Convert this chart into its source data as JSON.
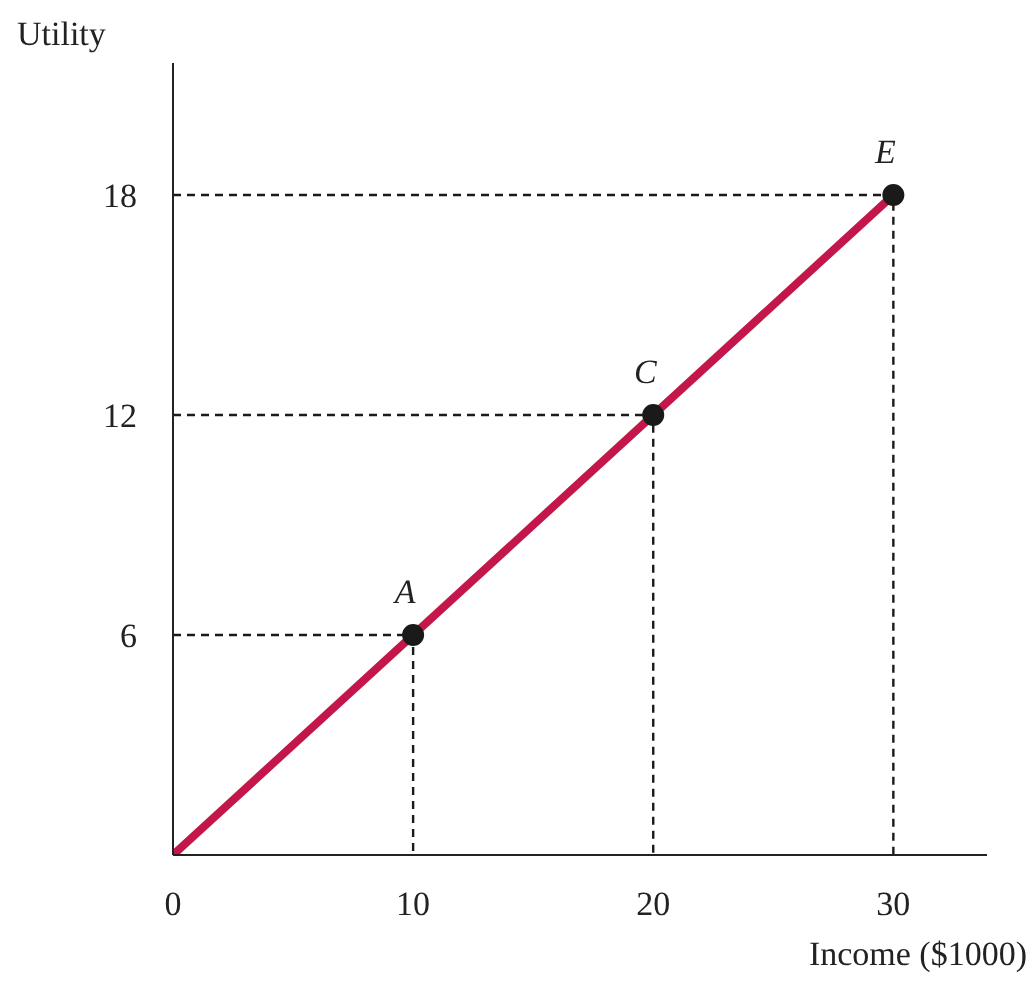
{
  "chart_data": {
    "type": "line",
    "xlabel": "Income ($1000)",
    "ylabel": "Utility",
    "x": [
      0,
      10,
      20,
      30
    ],
    "series": [
      {
        "color": "#c3174b",
        "values": [
          0,
          6,
          12,
          18
        ]
      },
      {
        "type": "scatter",
        "color": "#1a1a1a",
        "marker": "circle",
        "values": [
          null,
          6,
          12,
          18
        ]
      },
      {
        "type": "line",
        "color": "#1a1a1a",
        "line_style": "dashed",
        "x": [
          0,
          10,
          10
        ],
        "values": [
          6,
          6,
          0
        ]
      },
      {
        "type": "line",
        "color": "#1a1a1a",
        "line_style": "dashed",
        "x": [
          0,
          20,
          20
        ],
        "values": [
          12,
          12,
          0
        ]
      },
      {
        "type": "line",
        "color": "#1a1a1a",
        "line_style": "dashed",
        "x": [
          0,
          30,
          30
        ],
        "values": [
          18,
          18,
          0
        ]
      }
    ],
    "annotations": [
      {
        "text": "A",
        "x": 10,
        "y": 6
      },
      {
        "text": "C",
        "x": 20,
        "y": 12
      },
      {
        "text": "E",
        "x": 30,
        "y": 18
      }
    ],
    "xlim": [
      0,
      33.9
    ],
    "ylim": [
      0,
      21.6
    ],
    "xticks": [
      0,
      10,
      20,
      30
    ],
    "yticks": [
      6,
      12,
      18
    ],
    "grid": false
  }
}
